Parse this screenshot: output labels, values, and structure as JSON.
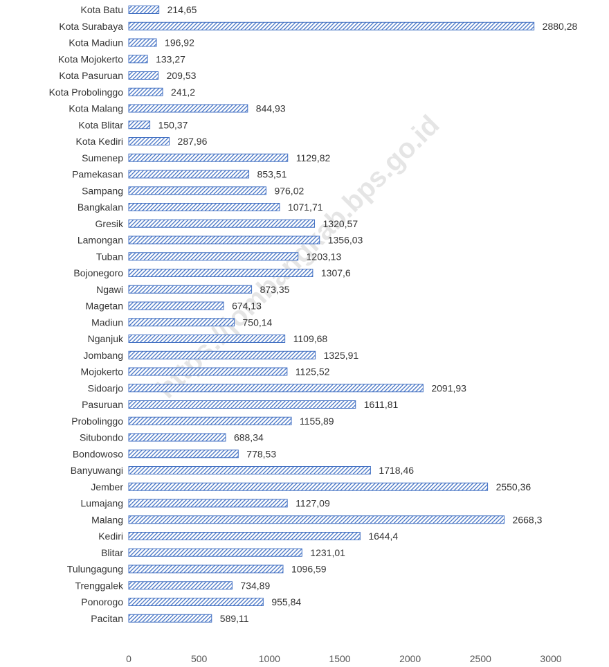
{
  "watermark": "https://jombangkab.bps.go.id",
  "chart_data": {
    "type": "bar",
    "orientation": "horizontal",
    "title": "",
    "xlabel": "",
    "ylabel": "",
    "xlim": [
      0,
      3000
    ],
    "xticks": [
      "0",
      "500",
      "1000",
      "1500",
      "2000",
      "2500",
      "3000"
    ],
    "grid": false,
    "legend": "none",
    "bar_color": "#4472C4",
    "categories": [
      "Kota Batu",
      "Kota Surabaya",
      "Kota Madiun",
      "Kota Mojokerto",
      "Kota Pasuruan",
      "Kota Probolinggo",
      "Kota Malang",
      "Kota Blitar",
      "Kota Kediri",
      "Sumenep",
      "Pamekasan",
      "Sampang",
      "Bangkalan",
      "Gresik",
      "Lamongan",
      "Tuban",
      "Bojonegoro",
      "Ngawi",
      "Magetan",
      "Madiun",
      "Nganjuk",
      "Jombang",
      "Mojokerto",
      "Sidoarjo",
      "Pasuruan",
      "Probolinggo",
      "Situbondo",
      "Bondowoso",
      "Banyuwangi",
      "Jember",
      "Lumajang",
      "Malang",
      "Kediri",
      "Blitar",
      "Tulungagung",
      "Trenggalek",
      "Ponorogo",
      "Pacitan"
    ],
    "values": [
      214.65,
      2880.28,
      196.92,
      133.27,
      209.53,
      241.2,
      844.93,
      150.37,
      287.96,
      1129.82,
      853.51,
      976.02,
      1071.71,
      1320.57,
      1356.03,
      1203.13,
      1307.6,
      873.35,
      674.13,
      750.14,
      1109.68,
      1325.91,
      1125.52,
      2091.93,
      1611.81,
      1155.89,
      688.34,
      778.53,
      1718.46,
      2550.36,
      1127.09,
      2668.3,
      1644.4,
      1231.01,
      1096.59,
      734.89,
      955.84,
      589.11
    ],
    "value_labels": [
      "214,65",
      "2880,28",
      "196,92",
      "133,27",
      "209,53",
      "241,2",
      "844,93",
      "150,37",
      "287,96",
      "1129,82",
      "853,51",
      "976,02",
      "1071,71",
      "1320,57",
      "1356,03",
      "1203,13",
      "1307,6",
      "873,35",
      "674,13",
      "750,14",
      "1109,68",
      "1325,91",
      "1125,52",
      "2091,93",
      "1611,81",
      "1155,89",
      "688,34",
      "778,53",
      "1718,46",
      "2550,36",
      "1127,09",
      "2668,3",
      "1644,4",
      "1231,01",
      "1096,59",
      "734,89",
      "955,84",
      "589,11"
    ]
  }
}
